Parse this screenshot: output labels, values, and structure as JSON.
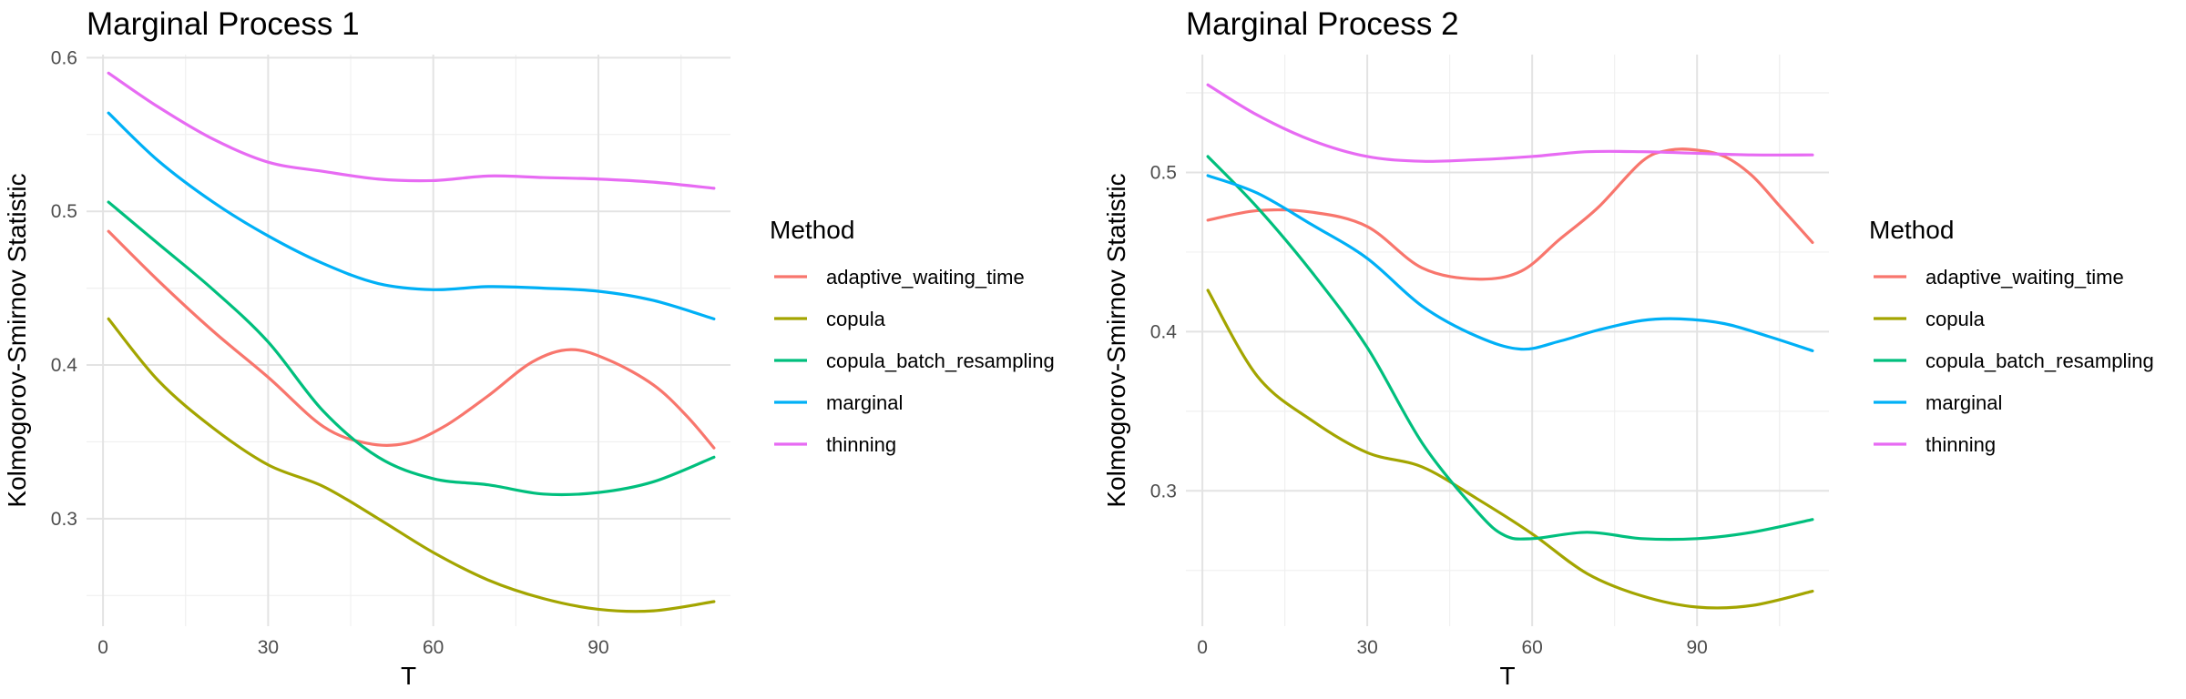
{
  "chart_data": [
    {
      "type": "line",
      "title": "Marginal Process 1",
      "xlabel": "T",
      "ylabel": "Kolmogorov-Smirnov Statistic",
      "xlim": [
        -3,
        114
      ],
      "ylim": [
        0.23,
        0.602
      ],
      "x_ticks": [
        0,
        30,
        60,
        90
      ],
      "x_tick_labels": [
        "0",
        "30",
        "60",
        "90"
      ],
      "y_ticks": [
        0.3,
        0.4,
        0.5,
        0.6
      ],
      "y_tick_labels": [
        "0.3",
        "0.4",
        "0.5",
        "0.6"
      ],
      "grid": true,
      "legend_title": "Method",
      "legend_position": "right",
      "series": [
        {
          "name": "adaptive_waiting_time",
          "color": "#F8766D",
          "x": [
            1,
            10,
            20,
            30,
            40,
            48,
            55,
            62,
            70,
            78,
            85,
            92,
            100,
            106,
            111
          ],
          "y": [
            0.487,
            0.455,
            0.422,
            0.392,
            0.36,
            0.349,
            0.349,
            0.36,
            0.38,
            0.402,
            0.41,
            0.403,
            0.387,
            0.367,
            0.346
          ]
        },
        {
          "name": "copula",
          "color": "#A3A500",
          "x": [
            1,
            10,
            20,
            30,
            40,
            50,
            60,
            70,
            80,
            90,
            100,
            111
          ],
          "y": [
            0.43,
            0.39,
            0.359,
            0.335,
            0.321,
            0.3,
            0.278,
            0.26,
            0.248,
            0.241,
            0.24,
            0.246
          ]
        },
        {
          "name": "copula_batch_resampling",
          "color": "#00BF7D",
          "x": [
            1,
            10,
            20,
            30,
            40,
            50,
            60,
            70,
            80,
            90,
            100,
            111
          ],
          "y": [
            0.506,
            0.479,
            0.449,
            0.415,
            0.37,
            0.34,
            0.326,
            0.322,
            0.316,
            0.317,
            0.324,
            0.34
          ]
        },
        {
          "name": "marginal",
          "color": "#00B0F6",
          "x": [
            1,
            10,
            20,
            30,
            40,
            50,
            60,
            70,
            80,
            90,
            100,
            111
          ],
          "y": [
            0.564,
            0.533,
            0.506,
            0.484,
            0.466,
            0.453,
            0.449,
            0.451,
            0.45,
            0.448,
            0.442,
            0.43
          ]
        },
        {
          "name": "thinning",
          "color": "#E76BF3",
          "x": [
            1,
            10,
            20,
            30,
            40,
            50,
            60,
            70,
            80,
            90,
            100,
            111
          ],
          "y": [
            0.59,
            0.568,
            0.547,
            0.532,
            0.526,
            0.521,
            0.52,
            0.523,
            0.522,
            0.521,
            0.519,
            0.515
          ]
        }
      ]
    },
    {
      "type": "line",
      "title": "Marginal Process 2",
      "xlabel": "T",
      "ylabel": "Kolmogorov-Smirnov Statistic",
      "xlim": [
        -3,
        114
      ],
      "ylim": [
        0.215,
        0.574
      ],
      "x_ticks": [
        0,
        30,
        60,
        90
      ],
      "x_tick_labels": [
        "0",
        "30",
        "60",
        "90"
      ],
      "y_ticks": [
        0.3,
        0.4,
        0.5
      ],
      "y_tick_labels": [
        "0.3",
        "0.4",
        "0.5"
      ],
      "grid": true,
      "legend_title": "Method",
      "legend_position": "right",
      "series": [
        {
          "name": "adaptive_waiting_time",
          "color": "#F8766D",
          "x": [
            1,
            10,
            20,
            30,
            40,
            50,
            58,
            65,
            72,
            80,
            85,
            90,
            95,
            100,
            105,
            111
          ],
          "y": [
            0.47,
            0.476,
            0.475,
            0.466,
            0.44,
            0.433,
            0.438,
            0.458,
            0.478,
            0.507,
            0.514,
            0.514,
            0.51,
            0.498,
            0.479,
            0.456
          ]
        },
        {
          "name": "copula",
          "color": "#A3A500",
          "x": [
            1,
            10,
            20,
            30,
            40,
            50,
            60,
            70,
            80,
            90,
            100,
            111
          ],
          "y": [
            0.426,
            0.372,
            0.344,
            0.324,
            0.315,
            0.295,
            0.273,
            0.248,
            0.234,
            0.227,
            0.228,
            0.237
          ]
        },
        {
          "name": "copula_batch_resampling",
          "color": "#00BF7D",
          "x": [
            1,
            10,
            20,
            30,
            40,
            50,
            55,
            60,
            70,
            80,
            90,
            100,
            111
          ],
          "y": [
            0.51,
            0.478,
            0.437,
            0.39,
            0.33,
            0.287,
            0.272,
            0.27,
            0.274,
            0.27,
            0.27,
            0.274,
            0.282
          ]
        },
        {
          "name": "marginal",
          "color": "#00B0F6",
          "x": [
            1,
            10,
            20,
            30,
            40,
            50,
            58,
            65,
            72,
            80,
            87,
            95,
            103,
            111
          ],
          "y": [
            0.498,
            0.487,
            0.467,
            0.446,
            0.416,
            0.397,
            0.389,
            0.394,
            0.401,
            0.407,
            0.408,
            0.405,
            0.397,
            0.388
          ]
        },
        {
          "name": "thinning",
          "color": "#E76BF3",
          "x": [
            1,
            10,
            20,
            30,
            40,
            50,
            60,
            70,
            80,
            90,
            100,
            111
          ],
          "y": [
            0.555,
            0.536,
            0.52,
            0.51,
            0.507,
            0.508,
            0.51,
            0.513,
            0.513,
            0.512,
            0.511,
            0.511
          ]
        }
      ]
    }
  ]
}
